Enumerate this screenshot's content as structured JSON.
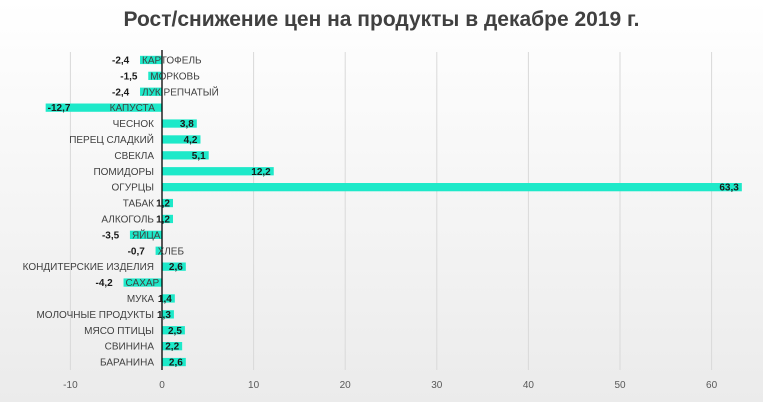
{
  "chart_data": {
    "type": "bar",
    "orientation": "horizontal",
    "title": "Рост/снижение цен на продукты в декабре 2019 г.",
    "xlabel": "",
    "ylabel": "",
    "xlim": [
      -10,
      60
    ],
    "xticks": [
      -10,
      0,
      10,
      20,
      30,
      40,
      50,
      60
    ],
    "grid": true,
    "legend": "none",
    "bar_color": "#1de9c9",
    "categories": [
      "КАРТОФЕЛЬ",
      "МОРКОВЬ",
      "ЛУК РЕПЧАТЫЙ",
      "КАПУСТА",
      "ЧЕСНОК",
      "ПЕРЕЦ СЛАДКИЙ",
      "СВЕКЛА",
      "ПОМИДОРЫ",
      "ОГУРЦЫ",
      "ТАБАК",
      "АЛКОГОЛЬ",
      "ЯЙЦА",
      "ХЛЕБ",
      "КОНДИТЕРСКИЕ ИЗДЕЛИЯ",
      "САХАР",
      "МУКА",
      "МОЛОЧНЫЕ ПРОДУКТЫ",
      "МЯСО ПТИЦЫ",
      "СВИНИНА",
      "БАРАНИНА"
    ],
    "values": [
      -2.4,
      -1.5,
      -2.4,
      -12.7,
      3.8,
      4.2,
      5.1,
      12.2,
      63.3,
      1.2,
      1.2,
      -3.5,
      -0.7,
      2.6,
      -4.2,
      1.4,
      1.3,
      2.5,
      2.2,
      2.6
    ],
    "value_labels": [
      "-2,4",
      "-1,5",
      "-2,4",
      "-12,7",
      "3,8",
      "4,2",
      "5,1",
      "12,2",
      "63,3",
      "1,2",
      "1,2",
      "-3,5",
      "-0,7",
      "2,6",
      "-4,2",
      "1,4",
      "1,3",
      "2,5",
      "2,2",
      "2,6"
    ]
  }
}
